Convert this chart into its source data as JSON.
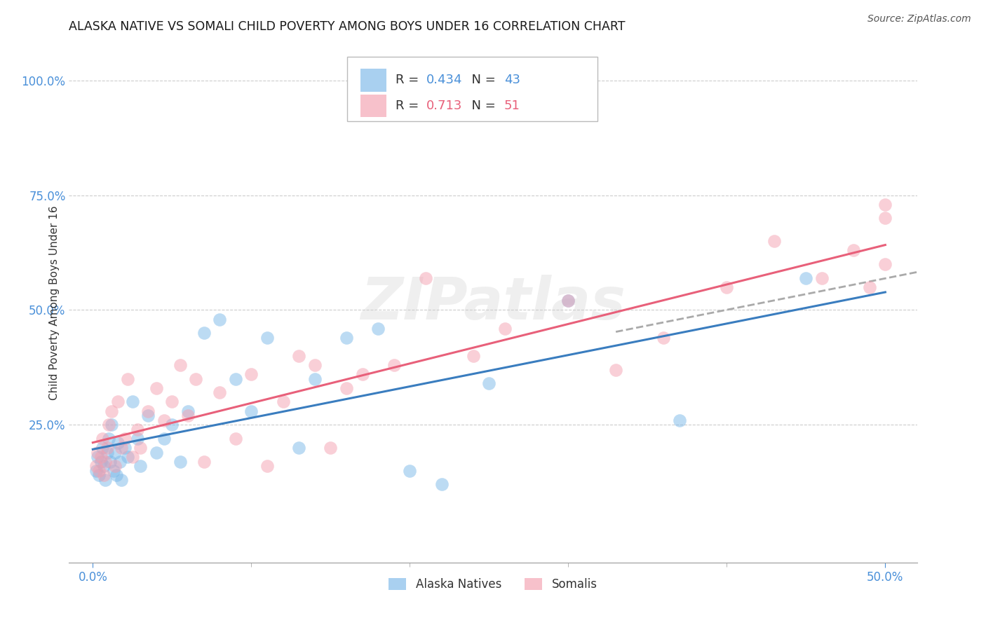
{
  "title": "ALASKA NATIVE VS SOMALI CHILD POVERTY AMONG BOYS UNDER 16 CORRELATION CHART",
  "source": "Source: ZipAtlas.com",
  "xlabel_ticks_show": [
    "0.0%",
    "50.0%"
  ],
  "xlabel_ticks_pos": [
    0,
    50
  ],
  "ylabel_ticks": [
    "25.0%",
    "50.0%",
    "75.0%",
    "100.0%"
  ],
  "ylabel_ticks_pos": [
    25,
    50,
    75,
    100
  ],
  "xlim": [
    -1.5,
    52
  ],
  "ylim": [
    -5,
    108
  ],
  "alaska_R": 0.434,
  "alaska_N": 43,
  "somali_R": 0.713,
  "somali_N": 51,
  "alaska_color": "#7bb8e8",
  "somali_color": "#f4a0b0",
  "alaska_line_color": "#3a7dbf",
  "somali_line_color": "#e8607a",
  "dash_color": "#aaaaaa",
  "alaska_x": [
    0.2,
    0.3,
    0.4,
    0.5,
    0.6,
    0.7,
    0.8,
    0.9,
    1.0,
    1.1,
    1.2,
    1.3,
    1.4,
    1.5,
    1.6,
    1.7,
    1.8,
    2.0,
    2.2,
    2.5,
    2.8,
    3.0,
    3.5,
    4.0,
    4.5,
    5.0,
    5.5,
    6.0,
    7.0,
    8.0,
    9.0,
    10.0,
    11.0,
    13.0,
    14.0,
    16.0,
    18.0,
    20.0,
    22.0,
    25.0,
    30.0,
    37.0,
    45.0
  ],
  "alaska_y": [
    15,
    18,
    14,
    17,
    20,
    16,
    13,
    19,
    22,
    17,
    25,
    15,
    19,
    14,
    21,
    17,
    13,
    20,
    18,
    30,
    22,
    16,
    27,
    19,
    22,
    25,
    17,
    28,
    45,
    48,
    35,
    28,
    44,
    20,
    35,
    44,
    46,
    15,
    12,
    34,
    52,
    26,
    57
  ],
  "somali_x": [
    0.2,
    0.3,
    0.4,
    0.5,
    0.6,
    0.7,
    0.8,
    0.9,
    1.0,
    1.2,
    1.4,
    1.6,
    1.8,
    2.0,
    2.2,
    2.5,
    2.8,
    3.0,
    3.5,
    4.0,
    4.5,
    5.0,
    5.5,
    6.0,
    6.5,
    7.0,
    8.0,
    9.0,
    10.0,
    11.0,
    12.0,
    13.0,
    14.0,
    15.0,
    16.0,
    17.0,
    19.0,
    21.0,
    24.0,
    26.0,
    30.0,
    33.0,
    36.0,
    40.0,
    43.0,
    46.0,
    48.0,
    49.0,
    50.0,
    50.0,
    50.0
  ],
  "somali_y": [
    16,
    19,
    15,
    18,
    22,
    14,
    17,
    20,
    25,
    28,
    16,
    30,
    20,
    22,
    35,
    18,
    24,
    20,
    28,
    33,
    26,
    30,
    38,
    27,
    35,
    17,
    32,
    22,
    36,
    16,
    30,
    40,
    38,
    20,
    33,
    36,
    38,
    57,
    40,
    46,
    52,
    37,
    44,
    55,
    65,
    57,
    63,
    55,
    70,
    60,
    73
  ],
  "watermark_text": "ZIPatlas",
  "ylabel_label": "Child Poverty Among Boys Under 16",
  "bottom_legend": [
    "Alaska Natives",
    "Somalis"
  ]
}
